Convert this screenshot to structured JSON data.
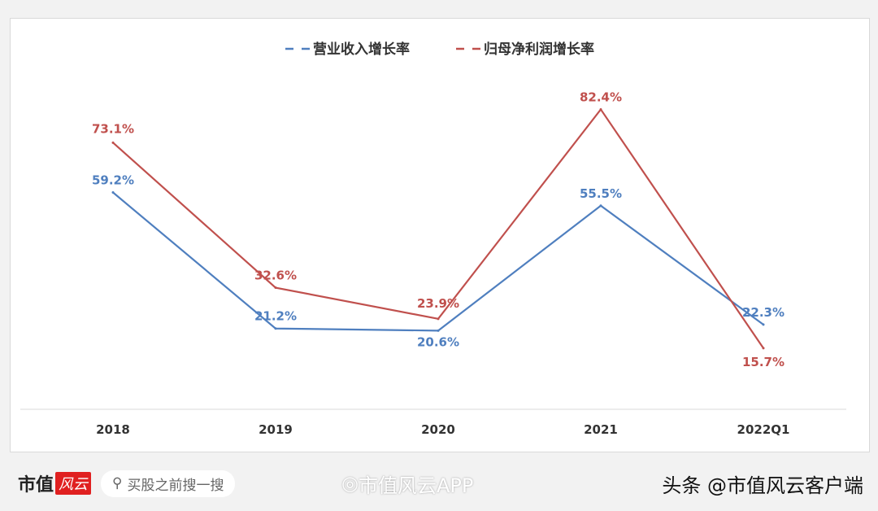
{
  "chart_data": {
    "type": "line",
    "title": "",
    "categories": [
      "2018",
      "2019",
      "2020",
      "2021",
      "2022Q1"
    ],
    "series": [
      {
        "name": "营业收入增长率",
        "color": "#4f7fbf",
        "values": [
          59.2,
          21.2,
          20.6,
          55.5,
          22.3
        ],
        "labels": [
          "59.2%",
          "21.2%",
          "20.6%",
          "55.5%",
          "22.3%"
        ]
      },
      {
        "name": "归母净利润增长率",
        "color": "#c0504d",
        "values": [
          73.1,
          32.6,
          23.9,
          82.4,
          15.7
        ],
        "labels": [
          "73.1%",
          "32.6%",
          "23.9%",
          "82.4%",
          "15.7%"
        ]
      }
    ],
    "legend": "top-center",
    "grid": false,
    "unit": "%"
  },
  "watermark": "市值风云",
  "footer": {
    "logo": "市值",
    "logo_badge": "风云",
    "search_placeholder": "买股之前搜一搜",
    "weibo": "市值风云APP",
    "toutiao": "头条 @市值风云客户端"
  }
}
